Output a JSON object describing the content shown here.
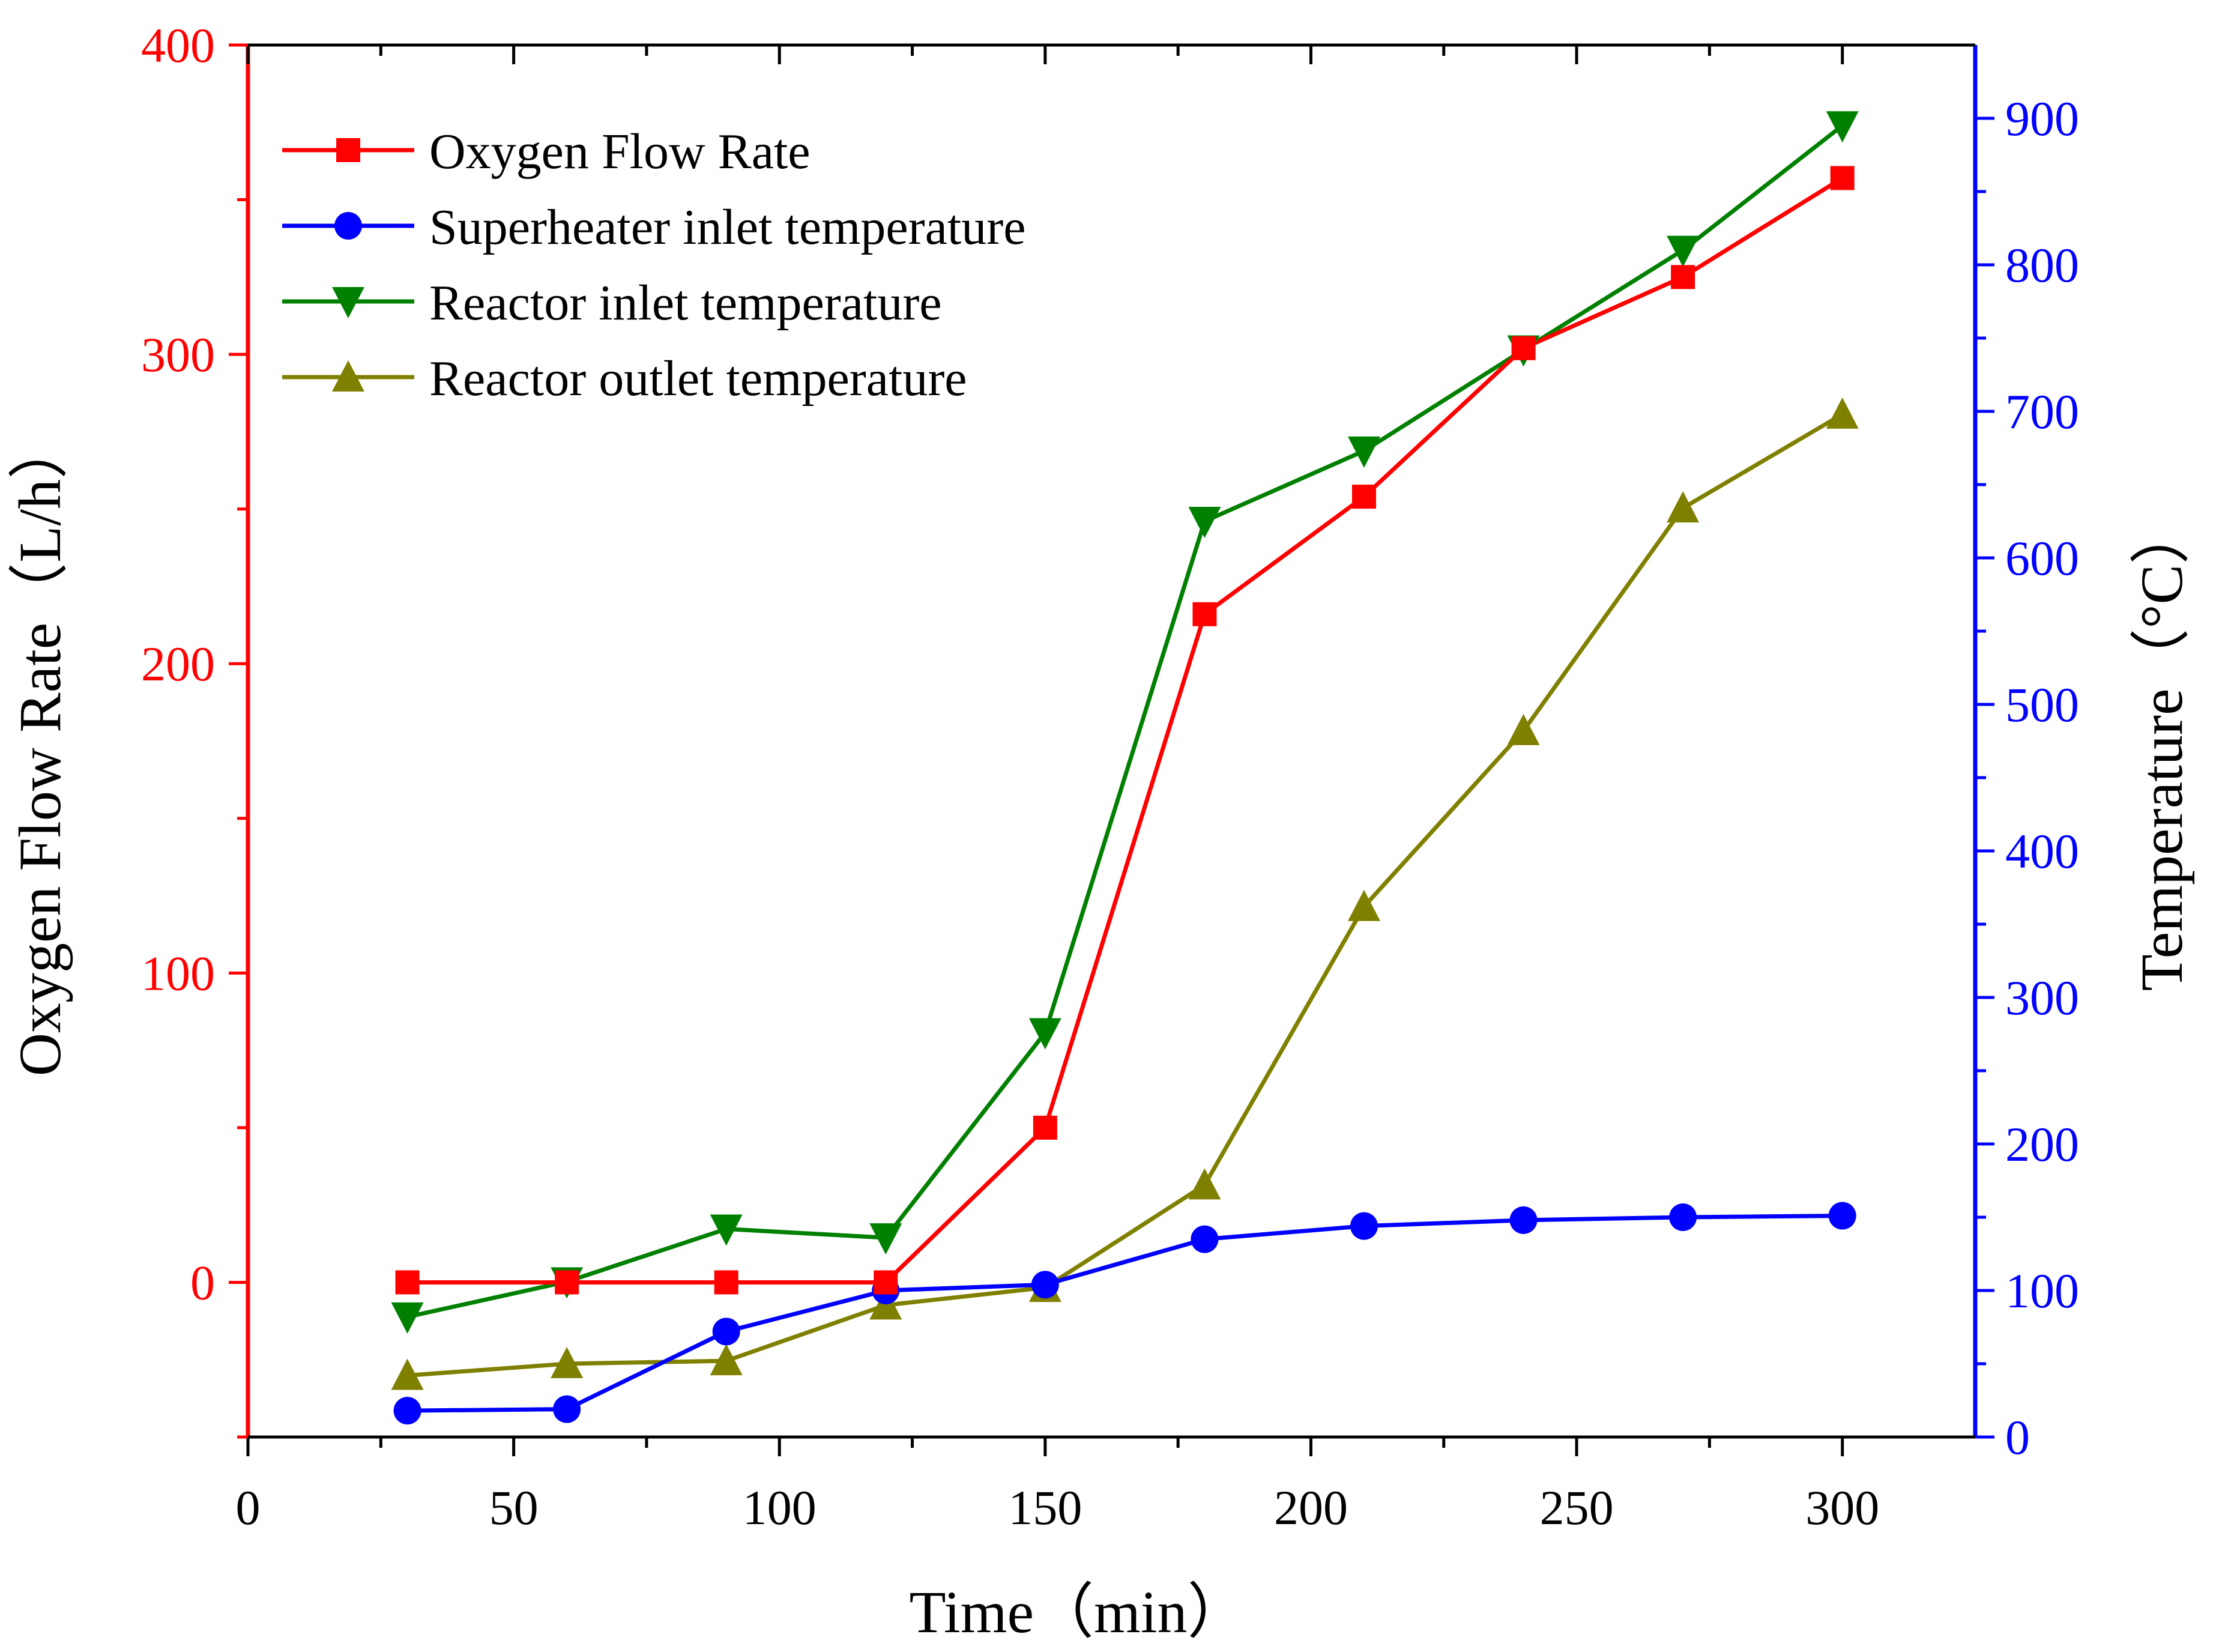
{
  "chart_data": {
    "type": "line",
    "title": "",
    "xlabel": "Time（min）",
    "ylabel_left": "Oxygen Flow Rate（L/h）",
    "ylabel_right": "Temperature（°C）",
    "x_ticks": [
      "0",
      "50",
      "100",
      "150",
      "200",
      "250",
      "300"
    ],
    "y_left_ticks": [
      "0",
      "100",
      "200",
      "300",
      "400"
    ],
    "y_right_ticks": [
      "0",
      "100",
      "200",
      "300",
      "400",
      "500",
      "600",
      "700",
      "800",
      "900"
    ],
    "xlim": [
      0,
      325
    ],
    "ylim_left": [
      -50,
      400
    ],
    "ylim_right": [
      0,
      950
    ],
    "x": [
      30,
      60,
      90,
      120,
      150,
      180,
      210,
      240,
      270,
      300
    ],
    "series": [
      {
        "name": "Oxygen Flow Rate",
        "axis": "left",
        "color": "#ff0000",
        "marker": "square",
        "values": [
          0,
          0,
          0,
          0,
          50,
          216,
          254,
          302,
          325,
          357
        ]
      },
      {
        "name": "Superheater inlet temperature",
        "axis": "right",
        "color": "#0000ff",
        "marker": "circle",
        "values": [
          18,
          19,
          72,
          100,
          104,
          135,
          144,
          148,
          150,
          151
        ]
      },
      {
        "name": "Reactor inlet temperature",
        "axis": "right",
        "color": "#008000",
        "marker": "triangle-down",
        "values": [
          82,
          106,
          142,
          136,
          276,
          625,
          673,
          742,
          810,
          895
        ]
      },
      {
        "name": "Reactor outlet temperature",
        "axis": "right",
        "color": "#808000",
        "marker": "triangle-up",
        "values": [
          42,
          50,
          52,
          90,
          102,
          172,
          362,
          482,
          634,
          698
        ]
      }
    ],
    "legend_position": "top-left",
    "axis_colors": {
      "left": "#ff0000",
      "right": "#0000ff",
      "bottom": "#000000"
    }
  }
}
